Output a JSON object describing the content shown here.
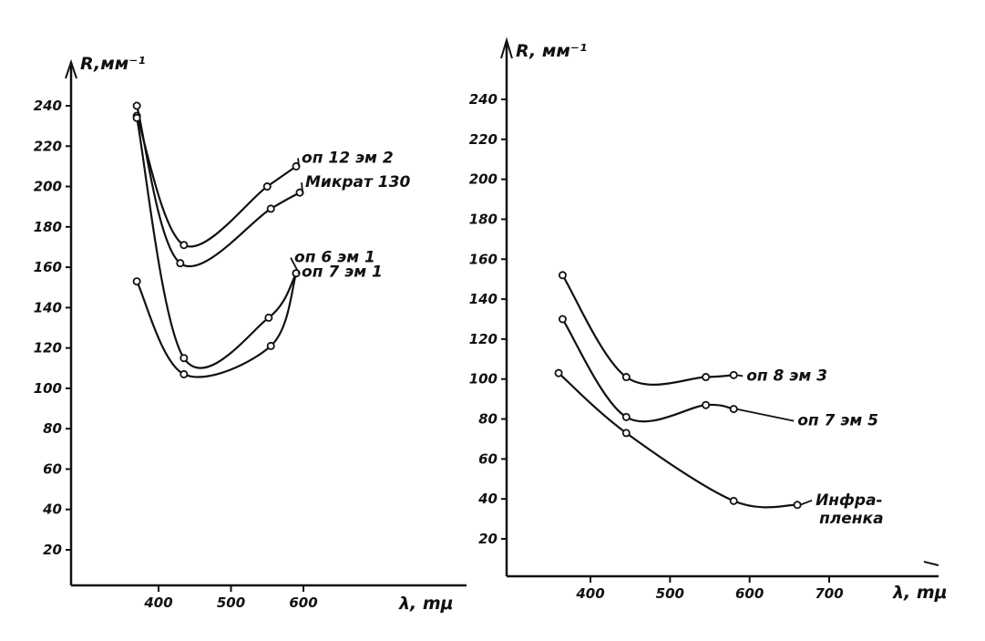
{
  "chart_data": [
    {
      "type": "line",
      "ylabel": "R,мм⁻¹",
      "xlabel": "λ, mμ",
      "x_ticks": [
        "400",
        "500",
        "600"
      ],
      "y_ticks": [
        "20",
        "40",
        "60",
        "80",
        "100",
        "120",
        "140",
        "160",
        "180",
        "200",
        "220",
        "240"
      ],
      "xlim": [
        300,
        640
      ],
      "ylim": [
        0,
        250
      ],
      "grid": false,
      "series": [
        {
          "name": "оп 12 эм 2",
          "x": [
            370,
            435,
            550,
            590
          ],
          "y": [
            235,
            171,
            200,
            210
          ]
        },
        {
          "name": "Микрат 130",
          "x": [
            370,
            430,
            555,
            595
          ],
          "y": [
            240,
            162,
            189,
            197
          ]
        },
        {
          "name": "оп 6 эм 1",
          "x": [
            370,
            435,
            552,
            590
          ],
          "y": [
            234,
            115,
            135,
            157
          ]
        },
        {
          "name": "оп 7 эм 1",
          "x": [
            370,
            435,
            555,
            590
          ],
          "y": [
            153,
            107,
            121,
            157
          ]
        }
      ]
    },
    {
      "type": "line",
      "ylabel": "R, мм⁻¹",
      "xlabel": "λ, mμ",
      "x_ticks": [
        "400",
        "500",
        "600",
        "700"
      ],
      "y_ticks": [
        "20",
        "40",
        "60",
        "80",
        "100",
        "120",
        "140",
        "160",
        "180",
        "200",
        "220",
        "240"
      ],
      "xlim": [
        330,
        760
      ],
      "ylim": [
        0,
        250
      ],
      "grid": false,
      "series": [
        {
          "name": "оп 8 эм 3",
          "x": [
            365,
            445,
            545,
            580
          ],
          "y": [
            152,
            101,
            101,
            102
          ]
        },
        {
          "name": "оп 7 эм 5",
          "x": [
            365,
            445,
            545,
            580
          ],
          "y": [
            130,
            81,
            87,
            85
          ]
        },
        {
          "name": "Инфра-пленка",
          "x": [
            360,
            445,
            580,
            660
          ],
          "y": [
            103,
            73,
            39,
            37
          ]
        }
      ]
    }
  ]
}
